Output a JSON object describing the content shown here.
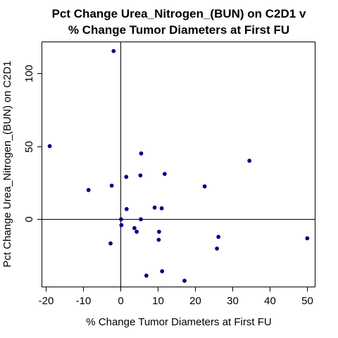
{
  "chart_data": {
    "type": "scatter",
    "title": [
      "Pct Change Urea_Nitrogen_(BUN) on C2D1 v",
      "% Change Tumor Diameters at First FU"
    ],
    "xlabel": "% Change Tumor Diameters at First FU",
    "ylabel": "Pct Change Urea_Nitrogen_(BUN) on C2D1",
    "xlim": [
      -21,
      52
    ],
    "ylim": [
      -46,
      121
    ],
    "xticks": [
      -20,
      -10,
      0,
      10,
      20,
      30,
      40,
      50
    ],
    "yticks": [
      0,
      50,
      100
    ],
    "reference_lines": {
      "x": 0,
      "y": 0
    },
    "grid": false,
    "point_color": "#000080",
    "x": [
      -1.9,
      -19,
      -8.6,
      -2.4,
      5.5,
      5.3,
      11.8,
      1.5,
      34.5,
      22.5,
      1.6,
      9.1,
      11,
      0.1,
      5.4,
      0.2,
      3.7,
      4.3,
      10.3,
      26.2,
      10.2,
      50,
      -2.7,
      25.8,
      6.9,
      11.1,
      17.1
    ],
    "y": [
      115,
      50,
      20,
      23,
      45,
      30,
      31,
      29,
      40,
      22.5,
      7,
      8,
      7.5,
      0,
      0,
      -4,
      -6,
      -8.5,
      -8.5,
      -12,
      -14,
      -13,
      -16.5,
      -20,
      -38.5,
      -35.5,
      -42
    ]
  }
}
